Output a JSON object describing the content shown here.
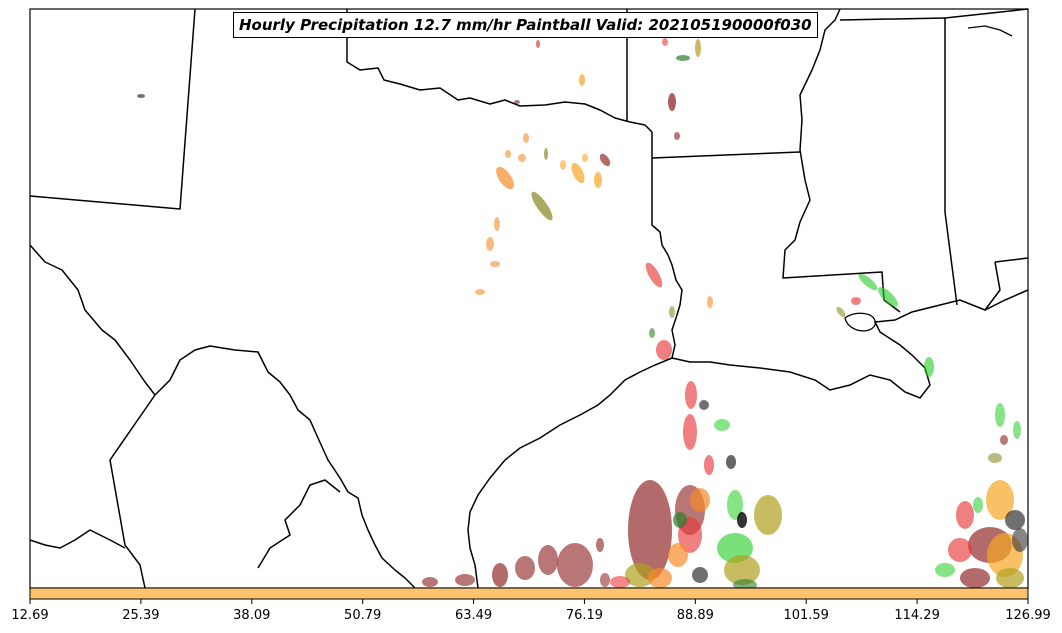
{
  "title": "Hourly Precipitation 12.7 mm/hr Paintball Valid: 202105190000f030",
  "colorbar": {
    "color": "#ffc36e",
    "ticks": [
      "12.69",
      "25.39",
      "38.09",
      "50.79",
      "63.49",
      "76.19",
      "88.89",
      "101.59",
      "114.29",
      "126.99"
    ]
  },
  "colors": {
    "border": "#000000",
    "land": "#ffffff",
    "member_colors": [
      "#e83a3a",
      "#8b1a1a",
      "#f58a2a",
      "#f5a623",
      "#8c8c2a",
      "#22cc22",
      "#2e7d2e",
      "#333333",
      "#b0a020"
    ]
  }
}
